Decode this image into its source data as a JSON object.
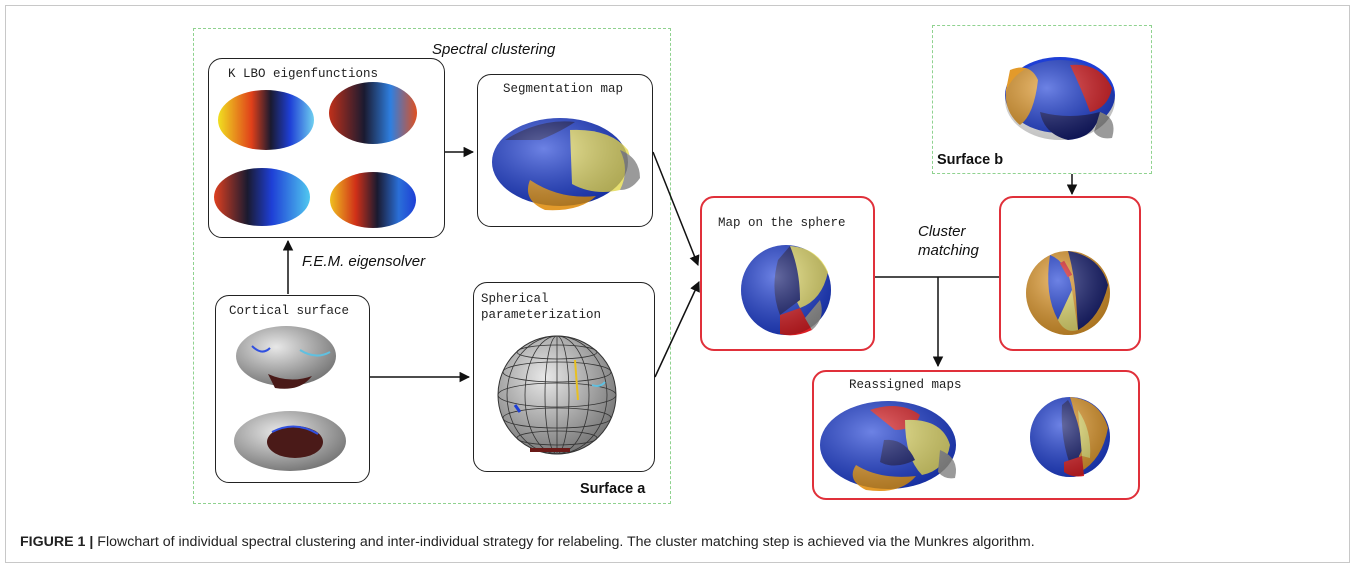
{
  "titles": {
    "spectral_clustering": "Spectral clustering",
    "fem_eigensolver": "F.E.M. eigensolver",
    "cluster_matching": "Cluster\nmatching",
    "surface_a": "Surface a",
    "surface_b": "Surface b"
  },
  "boxes": {
    "k_lbo": "K LBO eigenfunctions",
    "segmentation": "Segmentation map",
    "cortical": "Cortical surface",
    "spherical": "Spherical\nparameterization",
    "map_sphere": "Map on the sphere",
    "reassigned": "Reassigned maps"
  },
  "caption": {
    "label": "FIGURE 1 |",
    "text": "Flowchart of individual spectral clustering and inter-individual strategy for relabeling. The cluster matching step is achieved via the Munkres algorithm."
  },
  "colors": {
    "green_dash": "#8fd28f",
    "red_border": "#e0303a",
    "cluster_blue": "#1e3fd6",
    "cluster_navy": "#121a6e",
    "cluster_yellow": "#e8e070",
    "cluster_orange": "#e39a2a",
    "cluster_red": "#dc1e24",
    "cluster_gray": "#9a9a9a"
  }
}
